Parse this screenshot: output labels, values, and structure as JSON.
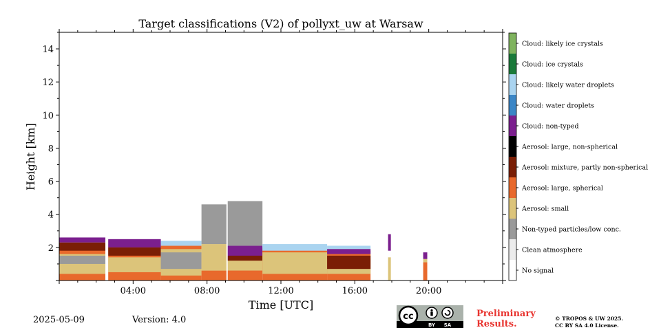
{
  "chart_data": {
    "type": "heatmap",
    "title": "Target classifications (V2) of pollyxt_uw at Warsaw",
    "xlabel": "Time [UTC]",
    "ylabel": "Height [km]",
    "xlim_hours": [
      0,
      24
    ],
    "ylim_km": [
      0,
      15
    ],
    "x_ticks": [
      {
        "hour": 4,
        "label": "04:00"
      },
      {
        "hour": 8,
        "label": "08:00"
      },
      {
        "hour": 12,
        "label": "12:00"
      },
      {
        "hour": 16,
        "label": "16:00"
      },
      {
        "hour": 20,
        "label": "20:00"
      }
    ],
    "y_ticks": [
      {
        "km": 2,
        "label": "2"
      },
      {
        "km": 4,
        "label": "4"
      },
      {
        "km": 6,
        "label": "6"
      },
      {
        "km": 8,
        "label": "8"
      },
      {
        "km": 10,
        "label": "10"
      },
      {
        "km": 12,
        "label": "12"
      },
      {
        "km": 14,
        "label": "14"
      }
    ],
    "colorbar": [
      {
        "label": "Cloud: likely ice crystals",
        "color": "#7fb35e"
      },
      {
        "label": "Cloud: ice crystals",
        "color": "#1a7a3a"
      },
      {
        "label": "Cloud: likely water droplets",
        "color": "#aad4f0"
      },
      {
        "label": "Cloud: water droplets",
        "color": "#3b86c6"
      },
      {
        "label": "Cloud: non-typed",
        "color": "#7b1f8e"
      },
      {
        "label": "Aerosol: large, non-spherical",
        "color": "#000000"
      },
      {
        "label": "Aerosol: mixture, partly non-spherical",
        "color": "#7a1e05"
      },
      {
        "label": "Aerosol: large, spherical",
        "color": "#e8692c"
      },
      {
        "label": "Aerosol: small",
        "color": "#dcc47a"
      },
      {
        "label": "Non-typed particles/low conc.",
        "color": "#9a9a9a"
      },
      {
        "label": "Clean atmosphere",
        "color": "#ececec"
      },
      {
        "label": "No signal",
        "color": "#ffffff"
      }
    ],
    "segments": [
      {
        "x0": 0.0,
        "x1": 2.5,
        "layers": [
          {
            "cls": "Aerosol: large, spherical",
            "y0": 0.0,
            "y1": 2.2
          },
          {
            "cls": "Aerosol: small",
            "y0": 0.4,
            "y1": 1.6
          },
          {
            "cls": "Non-typed particles/low conc.",
            "y0": 1.0,
            "y1": 1.5
          },
          {
            "cls": "Aerosol: mixture, partly non-spherical",
            "y0": 1.8,
            "y1": 2.3
          },
          {
            "cls": "Cloud: non-typed",
            "y0": 2.3,
            "y1": 2.6
          }
        ]
      },
      {
        "x0": 2.65,
        "x1": 5.5,
        "layers": [
          {
            "cls": "Aerosol: large, spherical",
            "y0": 0.0,
            "y1": 2.2
          },
          {
            "cls": "Aerosol: small",
            "y0": 0.5,
            "y1": 1.4
          },
          {
            "cls": "Aerosol: mixture, partly non-spherical",
            "y0": 1.5,
            "y1": 2.0
          },
          {
            "cls": "Cloud: likely water droplets",
            "y0": 2.2,
            "y1": 2.4
          },
          {
            "cls": "Cloud: non-typed",
            "y0": 2.0,
            "y1": 2.5
          }
        ]
      },
      {
        "x0": 5.5,
        "x1": 7.7,
        "layers": [
          {
            "cls": "Aerosol: large, spherical",
            "y0": 0.0,
            "y1": 2.1
          },
          {
            "cls": "Aerosol: small",
            "y0": 0.3,
            "y1": 1.9
          },
          {
            "cls": "Non-typed particles/low conc.",
            "y0": 0.7,
            "y1": 1.7
          },
          {
            "cls": "Cloud: likely water droplets",
            "y0": 2.1,
            "y1": 2.4
          }
        ]
      },
      {
        "x0": 7.7,
        "x1": 9.1,
        "layers": [
          {
            "cls": "Aerosol: large, spherical",
            "y0": 0.0,
            "y1": 0.6
          },
          {
            "cls": "Aerosol: small",
            "y0": 0.6,
            "y1": 2.2
          },
          {
            "cls": "Non-typed particles/low conc.",
            "y0": 2.2,
            "y1": 4.6
          }
        ]
      },
      {
        "x0": 9.1,
        "x1": 11.0,
        "layers": [
          {
            "cls": "Aerosol: large, spherical",
            "y0": 0.0,
            "y1": 1.9
          },
          {
            "cls": "Aerosol: small",
            "y0": 0.6,
            "y1": 1.4
          },
          {
            "cls": "Aerosol: mixture, partly non-spherical",
            "y0": 1.2,
            "y1": 2.0
          },
          {
            "cls": "Cloud: non-typed",
            "y0": 1.5,
            "y1": 2.1
          },
          {
            "cls": "Non-typed particles/low conc.",
            "y0": 2.1,
            "y1": 4.8
          }
        ]
      },
      {
        "x0": 11.0,
        "x1": 14.5,
        "layers": [
          {
            "cls": "Aerosol: large, spherical",
            "y0": 0.0,
            "y1": 1.9
          },
          {
            "cls": "Aerosol: small",
            "y0": 0.4,
            "y1": 1.7
          },
          {
            "cls": "Cloud: likely water droplets",
            "y0": 1.8,
            "y1": 2.2
          }
        ]
      },
      {
        "x0": 14.5,
        "x1": 16.85,
        "layers": [
          {
            "cls": "Aerosol: large, spherical",
            "y0": 0.0,
            "y1": 1.8
          },
          {
            "cls": "Aerosol: small",
            "y0": 0.4,
            "y1": 1.3
          },
          {
            "cls": "Aerosol: mixture, partly non-spherical",
            "y0": 0.7,
            "y1": 1.5
          },
          {
            "cls": "Cloud: likely water droplets",
            "y0": 1.6,
            "y1": 2.1
          },
          {
            "cls": "Cloud: non-typed",
            "y0": 1.6,
            "y1": 1.9
          }
        ]
      },
      {
        "x0": 17.8,
        "x1": 17.95,
        "layers": [
          {
            "cls": "Aerosol: small",
            "y0": 0.0,
            "y1": 1.4
          },
          {
            "cls": "Cloud: non-typed",
            "y0": 1.8,
            "y1": 2.8
          }
        ]
      },
      {
        "x0": 19.7,
        "x1": 19.92,
        "layers": [
          {
            "cls": "Aerosol: large, spherical",
            "y0": 0.0,
            "y1": 1.1
          },
          {
            "cls": "Aerosol: small",
            "y0": 1.1,
            "y1": 1.3
          },
          {
            "cls": "Cloud: non-typed",
            "y0": 1.3,
            "y1": 1.7
          }
        ]
      }
    ],
    "x_gaps_hours": [
      [
        2.5,
        2.65
      ],
      [
        9.05,
        9.12
      ]
    ],
    "grid": false
  },
  "footer": {
    "date": "2025-05-09",
    "version": "Version: 4.0",
    "preliminary_line1": "Preliminary",
    "preliminary_line2": "Results.",
    "copyright_line1": "© TROPOS & UW 2025.",
    "copyright_line2": "CC BY SA 4.0 License.",
    "cc_label": "cc",
    "by_label": "BY",
    "sa_label": "SA"
  }
}
